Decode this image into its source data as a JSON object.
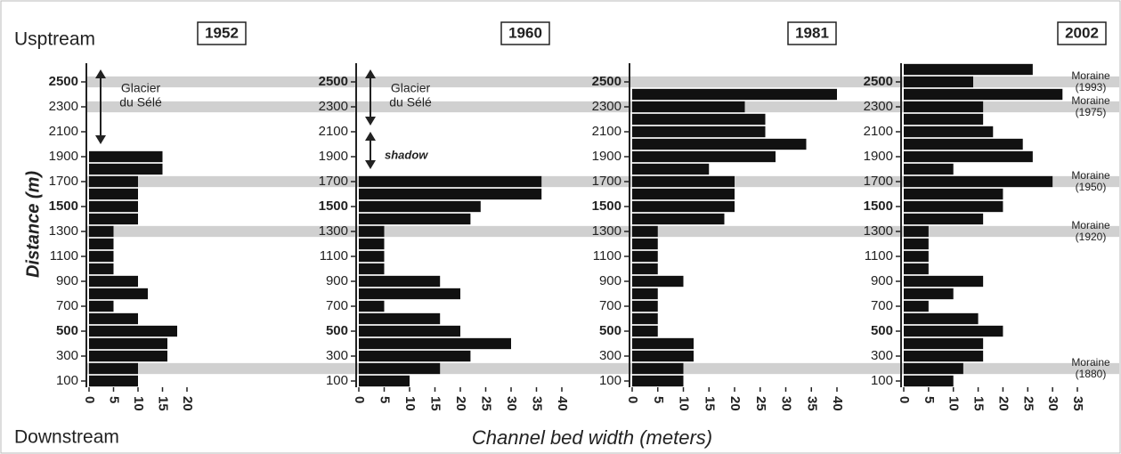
{
  "header": {
    "upstream": "Usptream",
    "downstream": "Downstream",
    "ylabel": "Distance (m)",
    "xlabel": "Channel bed width (meters)"
  },
  "moraines": [
    {
      "label": "Moraine",
      "year": "(1880)",
      "distance": 200
    },
    {
      "label": "Moraine",
      "year": "(1920)",
      "distance": 1300
    },
    {
      "label": "Moraine",
      "year": "(1950)",
      "distance": 1700
    },
    {
      "label": "Moraine",
      "year": "(1975)",
      "distance": 2300
    },
    {
      "label": "Moraine",
      "year": "(1993)",
      "distance": 2500
    }
  ],
  "chart_data": [
    {
      "type": "bar",
      "orientation": "horizontal",
      "title": "1952",
      "color": "#111",
      "y": [
        100,
        200,
        300,
        400,
        500,
        600,
        700,
        800,
        900,
        1000,
        1100,
        1200,
        1300,
        1400,
        1500,
        1600,
        1700,
        1800,
        1900
      ],
      "values": [
        10,
        10,
        16,
        16,
        18,
        10,
        5,
        12,
        10,
        5,
        5,
        5,
        5,
        10,
        10,
        10,
        10,
        15,
        15
      ],
      "xlim": [
        0,
        20
      ],
      "xticks": [
        0,
        5,
        10,
        15,
        20
      ],
      "ylim": [
        50,
        2650
      ],
      "yticks": [
        100,
        300,
        500,
        700,
        900,
        1100,
        1300,
        1500,
        1700,
        1900,
        2100,
        2300,
        2500
      ],
      "bold_yticks": [
        500,
        1500,
        2500
      ],
      "annotations": [
        {
          "lines": [
            "Glacier",
            "du Sélé"
          ],
          "span": [
            2000,
            2600
          ]
        }
      ]
    },
    {
      "type": "bar",
      "orientation": "horizontal",
      "title": "1960",
      "color": "#111",
      "y": [
        100,
        200,
        300,
        400,
        500,
        600,
        700,
        800,
        900,
        1000,
        1100,
        1200,
        1300,
        1400,
        1500,
        1600,
        1700
      ],
      "values": [
        10,
        16,
        22,
        30,
        20,
        16,
        5,
        20,
        16,
        5,
        5,
        5,
        5,
        22,
        24,
        36,
        36
      ],
      "xlim": [
        0,
        40
      ],
      "xticks": [
        0,
        5,
        10,
        15,
        20,
        25,
        30,
        35,
        40
      ],
      "ylim": [
        50,
        2650
      ],
      "yticks": [
        100,
        300,
        500,
        700,
        900,
        1100,
        1300,
        1500,
        1700,
        1900,
        2100,
        2300,
        2500
      ],
      "bold_yticks": [
        500,
        1500,
        2500
      ],
      "annotations": [
        {
          "lines": [
            "Glacier",
            "du Sélé"
          ],
          "span": [
            2150,
            2600
          ]
        },
        {
          "lines": [
            "shadow"
          ],
          "span": [
            1800,
            2100
          ]
        }
      ]
    },
    {
      "type": "bar",
      "orientation": "horizontal",
      "title": "1981",
      "color": "#111",
      "y": [
        100,
        200,
        300,
        400,
        500,
        600,
        700,
        800,
        900,
        1000,
        1100,
        1200,
        1300,
        1400,
        1500,
        1600,
        1700,
        1800,
        1900,
        2000,
        2100,
        2200,
        2300,
        2400
      ],
      "values": [
        10,
        10,
        12,
        12,
        5,
        5,
        5,
        5,
        10,
        5,
        5,
        5,
        5,
        18,
        20,
        20,
        20,
        15,
        28,
        34,
        26,
        26,
        22,
        40
      ],
      "xlim": [
        0,
        40
      ],
      "xticks": [
        0,
        5,
        10,
        15,
        20,
        25,
        30,
        35,
        40
      ],
      "ylim": [
        50,
        2650
      ],
      "yticks": [
        100,
        300,
        500,
        700,
        900,
        1100,
        1300,
        1500,
        1700,
        1900,
        2100,
        2300,
        2500
      ],
      "bold_yticks": [
        500,
        1500,
        2500
      ]
    },
    {
      "type": "bar",
      "orientation": "horizontal",
      "title": "2002",
      "color": "#111",
      "y": [
        100,
        200,
        300,
        400,
        500,
        600,
        700,
        800,
        900,
        1000,
        1100,
        1200,
        1300,
        1400,
        1500,
        1600,
        1700,
        1800,
        1900,
        2000,
        2100,
        2200,
        2300,
        2400,
        2500,
        2600
      ],
      "values": [
        10,
        12,
        16,
        16,
        20,
        15,
        5,
        10,
        16,
        5,
        5,
        5,
        5,
        16,
        20,
        20,
        30,
        10,
        26,
        24,
        18,
        16,
        16,
        32,
        14,
        26
      ],
      "xlim": [
        0,
        35
      ],
      "xticks": [
        0,
        5,
        10,
        15,
        20,
        25,
        30,
        35
      ],
      "ylim": [
        50,
        2650
      ],
      "yticks": [
        100,
        300,
        500,
        700,
        900,
        1100,
        1300,
        1500,
        1700,
        1900,
        2100,
        2300,
        2500
      ],
      "bold_yticks": [
        500,
        1500,
        2500
      ]
    }
  ]
}
